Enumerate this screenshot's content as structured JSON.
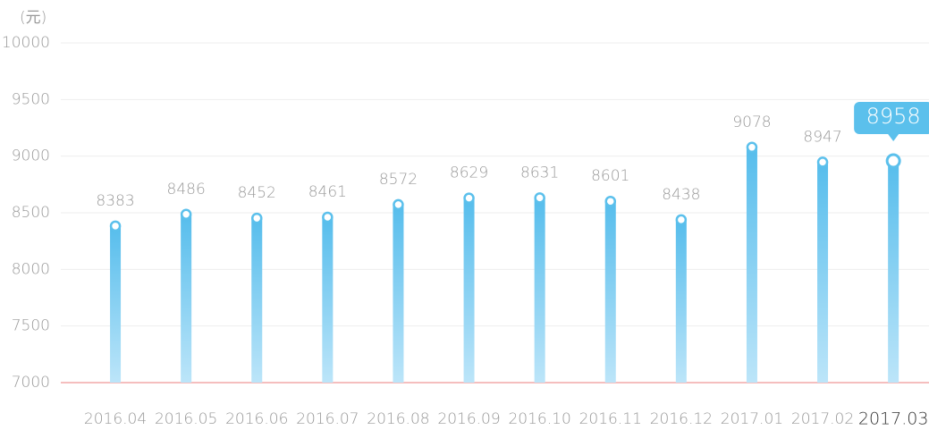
{
  "chart_data": {
    "type": "bar",
    "y_unit": "(元)",
    "categories": [
      "2016.04",
      "2016.05",
      "2016.06",
      "2016.07",
      "2016.08",
      "2016.09",
      "2016.10",
      "2016.11",
      "2016.12",
      "2017.01",
      "2017.02",
      "2017.03"
    ],
    "values": [
      8383,
      8486,
      8452,
      8461,
      8572,
      8629,
      8631,
      8601,
      8438,
      9078,
      8947,
      8958
    ],
    "color": "#5bc0ec",
    "highlight": 11,
    "ylim": [
      7000,
      10000
    ],
    "yticks": [
      7000,
      7500,
      8000,
      8500,
      9000,
      9500,
      10000
    ],
    "grid": true
  }
}
